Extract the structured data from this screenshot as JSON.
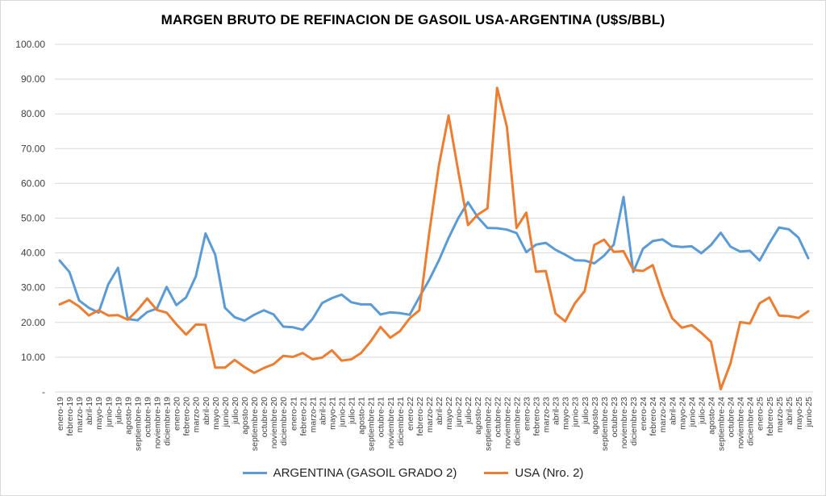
{
  "chart_data": {
    "type": "line",
    "title": "MARGEN BRUTO DE REFINACION DE GASOIL USA-ARGENTINA (U$S/BBL)",
    "xlabel": "",
    "ylabel": "",
    "ylim": [
      0,
      100
    ],
    "yticks": [
      "-",
      "10.00",
      "20.00",
      "30.00",
      "40.00",
      "50.00",
      "60.00",
      "70.00",
      "80.00",
      "90.00",
      "100.00"
    ],
    "grid": "horizontal",
    "legend_position": "bottom",
    "categories": [
      "enero-19",
      "febrero-19",
      "marzo-19",
      "abril-19",
      "mayo-19",
      "junio-19",
      "julio-19",
      "agosto-19",
      "septiembre-19",
      "octubre-19",
      "noviembre-19",
      "diciembre-19",
      "enero-20",
      "febrero-20",
      "marzo-20",
      "abril-20",
      "mayo-20",
      "junio-20",
      "julio-20",
      "agosto-20",
      "septiembre-20",
      "octubre-20",
      "noviembre-20",
      "diciembre-20",
      "enero-21",
      "febrero-21",
      "marzo-21",
      "abril-21",
      "mayo-21",
      "junio-21",
      "julio-21",
      "agosto-21",
      "septiembre-21",
      "octubre-21",
      "noviembre-21",
      "diciembre-21",
      "enero-22",
      "febrero-22",
      "marzo-22",
      "abril-22",
      "mayo-22",
      "junio-22",
      "julio-22",
      "agosto-22",
      "septiembre-22",
      "octubre-22",
      "noviembre-22",
      "diciembre-22",
      "enero-23",
      "febrero-23",
      "marzo-23",
      "abril-23",
      "mayo-23",
      "junio-23",
      "julio-23",
      "agosto-23",
      "septiembre-23",
      "octubre-23",
      "noviembre-23",
      "diciembre-23",
      "enero-24",
      "febrero-24",
      "marzo-24",
      "abril-24",
      "mayo-24",
      "junio-24",
      "julio-24",
      "agosto-24",
      "septiembre-24",
      "octubre-24",
      "noviembre-24",
      "diciembre-24",
      "enero-25",
      "febrero-25",
      "marzo-25",
      "abril-25",
      "mayo-25",
      "junio-25"
    ],
    "series": [
      {
        "name": "ARGENTINA (GASOIL GRADO 2)",
        "color": "#5b9bd5",
        "values": [
          37.8,
          34.5,
          26.3,
          24.2,
          22.8,
          31.0,
          35.7,
          21.0,
          20.6,
          23.0,
          24.0,
          30.2,
          25.0,
          27.2,
          33.2,
          45.6,
          39.5,
          24.2,
          21.5,
          20.5,
          22.2,
          23.5,
          22.3,
          18.8,
          18.6,
          17.9,
          21.0,
          25.6,
          27.0,
          28.0,
          25.8,
          25.2,
          25.2,
          22.3,
          22.9,
          22.7,
          22.2,
          27.3,
          32.2,
          37.8,
          44.3,
          50.0,
          54.6,
          50.3,
          47.2,
          47.1,
          46.7,
          45.7,
          40.2,
          42.4,
          42.9,
          40.9,
          39.5,
          37.9,
          37.8,
          37.0,
          39.2,
          42.4,
          56.1,
          34.5,
          41.2,
          43.4,
          43.9,
          42.0,
          41.7,
          41.9,
          39.9,
          42.3,
          45.8,
          41.8,
          40.4,
          40.6,
          37.8,
          42.8,
          47.3,
          46.8,
          44.4,
          38.5
        ]
      },
      {
        "name": "USA (Nro. 2)",
        "color": "#ed7d31",
        "values": [
          25.2,
          26.4,
          24.6,
          22.0,
          23.5,
          22.0,
          22.1,
          20.8,
          23.5,
          26.9,
          23.6,
          22.8,
          19.5,
          16.5,
          19.4,
          19.3,
          7.0,
          7.0,
          9.2,
          7.2,
          5.5,
          6.9,
          8.0,
          10.4,
          10.1,
          11.2,
          9.4,
          9.9,
          12.0,
          9.0,
          9.4,
          11.2,
          14.6,
          18.7,
          15.6,
          17.5,
          21.2,
          23.5,
          45.5,
          65.0,
          79.5,
          63.5,
          48.0,
          51.0,
          52.8,
          87.5,
          76.3,
          47.2,
          51.6,
          34.6,
          34.8,
          22.6,
          20.3,
          25.5,
          29.0,
          42.3,
          43.8,
          40.3,
          40.5,
          35.1,
          34.8,
          36.5,
          28.0,
          21.2,
          18.5,
          19.2,
          17.0,
          14.4,
          0.8,
          8.2,
          20.1,
          19.7,
          25.5,
          27.2,
          22.0,
          21.8,
          21.3,
          23.2
        ]
      }
    ]
  }
}
